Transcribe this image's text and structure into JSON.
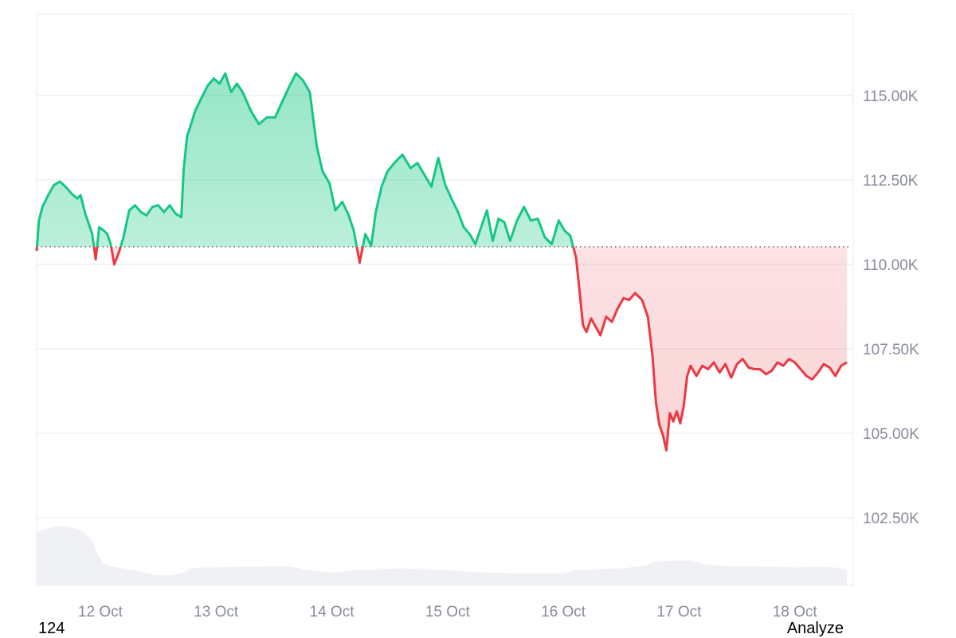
{
  "chart_data": {
    "type": "area",
    "x_labels": [
      "12 Oct",
      "13 Oct",
      "14 Oct",
      "15 Oct",
      "16 Oct",
      "17 Oct",
      "18 Oct"
    ],
    "y_ticks": [
      "115.00K",
      "112.50K",
      "110.00K",
      "107.50K",
      "105.00K",
      "102.50K"
    ],
    "y_tick_values": [
      115000,
      112500,
      110000,
      107500,
      105000,
      102500
    ],
    "ylim": [
      100500,
      117400
    ],
    "x_range": [
      11.45,
      18.47
    ],
    "baseline": 110520,
    "grid": true,
    "colors": {
      "up": "#16c784",
      "down": "#ea3943",
      "volume": "#eff1f4",
      "grid": "#eef0f3",
      "baseline": "#555555"
    },
    "series": [
      {
        "values": [
          [
            11.45,
            110400
          ],
          [
            11.47,
            111300
          ],
          [
            11.5,
            111700
          ],
          [
            11.55,
            112050
          ],
          [
            11.6,
            112350
          ],
          [
            11.65,
            112450
          ],
          [
            11.7,
            112300
          ],
          [
            11.75,
            112100
          ],
          [
            11.8,
            111950
          ],
          [
            11.83,
            112050
          ],
          [
            11.87,
            111500
          ],
          [
            11.9,
            111200
          ],
          [
            11.93,
            110900
          ],
          [
            11.96,
            110150
          ],
          [
            11.99,
            111100
          ],
          [
            12.03,
            111000
          ],
          [
            12.06,
            110900
          ],
          [
            12.09,
            110600
          ],
          [
            12.12,
            110000
          ],
          [
            12.16,
            110350
          ],
          [
            12.2,
            110800
          ],
          [
            12.25,
            111600
          ],
          [
            12.3,
            111750
          ],
          [
            12.35,
            111550
          ],
          [
            12.4,
            111450
          ],
          [
            12.45,
            111700
          ],
          [
            12.5,
            111750
          ],
          [
            12.55,
            111550
          ],
          [
            12.6,
            111750
          ],
          [
            12.65,
            111500
          ],
          [
            12.7,
            111400
          ],
          [
            12.72,
            112800
          ],
          [
            12.75,
            113800
          ],
          [
            12.78,
            114100
          ],
          [
            12.82,
            114550
          ],
          [
            12.87,
            114900
          ],
          [
            12.93,
            115300
          ],
          [
            12.98,
            115500
          ],
          [
            13.03,
            115350
          ],
          [
            13.08,
            115650
          ],
          [
            13.13,
            115100
          ],
          [
            13.18,
            115350
          ],
          [
            13.23,
            115100
          ],
          [
            13.3,
            114550
          ],
          [
            13.37,
            114150
          ],
          [
            13.44,
            114350
          ],
          [
            13.51,
            114350
          ],
          [
            13.57,
            114800
          ],
          [
            13.63,
            115250
          ],
          [
            13.69,
            115650
          ],
          [
            13.75,
            115450
          ],
          [
            13.81,
            115100
          ],
          [
            13.87,
            113500
          ],
          [
            13.92,
            112750
          ],
          [
            13.98,
            112400
          ],
          [
            14.03,
            111600
          ],
          [
            14.09,
            111850
          ],
          [
            14.14,
            111500
          ],
          [
            14.19,
            111000
          ],
          [
            14.24,
            110050
          ],
          [
            14.29,
            110900
          ],
          [
            14.34,
            110550
          ],
          [
            14.38,
            111550
          ],
          [
            14.43,
            112300
          ],
          [
            14.48,
            112750
          ],
          [
            14.54,
            113000
          ],
          [
            14.61,
            113250
          ],
          [
            14.68,
            112850
          ],
          [
            14.74,
            113000
          ],
          [
            14.8,
            112650
          ],
          [
            14.86,
            112300
          ],
          [
            14.92,
            113150
          ],
          [
            14.98,
            112350
          ],
          [
            15.04,
            111900
          ],
          [
            15.09,
            111550
          ],
          [
            15.14,
            111100
          ],
          [
            15.19,
            110900
          ],
          [
            15.24,
            110600
          ],
          [
            15.29,
            111100
          ],
          [
            15.34,
            111600
          ],
          [
            15.39,
            110700
          ],
          [
            15.44,
            111350
          ],
          [
            15.49,
            111250
          ],
          [
            15.54,
            110700
          ],
          [
            15.6,
            111300
          ],
          [
            15.66,
            111700
          ],
          [
            15.72,
            111300
          ],
          [
            15.78,
            111350
          ],
          [
            15.84,
            110800
          ],
          [
            15.9,
            110600
          ],
          [
            15.96,
            111300
          ],
          [
            16.01,
            111000
          ],
          [
            16.06,
            110850
          ],
          [
            16.11,
            110200
          ],
          [
            16.14,
            109200
          ],
          [
            16.17,
            108200
          ],
          [
            16.2,
            108000
          ],
          [
            16.24,
            108400
          ],
          [
            16.28,
            108150
          ],
          [
            16.32,
            107900
          ],
          [
            16.37,
            108450
          ],
          [
            16.42,
            108300
          ],
          [
            16.47,
            108700
          ],
          [
            16.52,
            109000
          ],
          [
            16.57,
            108950
          ],
          [
            16.62,
            109150
          ],
          [
            16.68,
            108950
          ],
          [
            16.73,
            108450
          ],
          [
            16.77,
            107300
          ],
          [
            16.8,
            105900
          ],
          [
            16.83,
            105250
          ],
          [
            16.86,
            104950
          ],
          [
            16.89,
            104500
          ],
          [
            16.92,
            105600
          ],
          [
            16.95,
            105350
          ],
          [
            16.98,
            105650
          ],
          [
            17.01,
            105300
          ],
          [
            17.04,
            105800
          ],
          [
            17.07,
            106700
          ],
          [
            17.1,
            107000
          ],
          [
            17.15,
            106700
          ],
          [
            17.2,
            107000
          ],
          [
            17.25,
            106900
          ],
          [
            17.3,
            107100
          ],
          [
            17.35,
            106800
          ],
          [
            17.4,
            107050
          ],
          [
            17.45,
            106650
          ],
          [
            17.5,
            107050
          ],
          [
            17.55,
            107200
          ],
          [
            17.6,
            106950
          ],
          [
            17.65,
            106900
          ],
          [
            17.7,
            106900
          ],
          [
            17.75,
            106750
          ],
          [
            17.8,
            106850
          ],
          [
            17.85,
            107100
          ],
          [
            17.9,
            107000
          ],
          [
            17.95,
            107200
          ],
          [
            18.0,
            107100
          ],
          [
            18.05,
            106900
          ],
          [
            18.1,
            106700
          ],
          [
            18.15,
            106600
          ],
          [
            18.2,
            106800
          ],
          [
            18.25,
            107050
          ],
          [
            18.3,
            106950
          ],
          [
            18.35,
            106700
          ],
          [
            18.4,
            107000
          ],
          [
            18.45,
            107100
          ]
        ]
      }
    ],
    "volume": [
      [
        11.45,
        0.62
      ],
      [
        11.55,
        0.67
      ],
      [
        11.65,
        0.7
      ],
      [
        11.75,
        0.68
      ],
      [
        11.85,
        0.63
      ],
      [
        11.92,
        0.55
      ],
      [
        11.97,
        0.38
      ],
      [
        12.02,
        0.26
      ],
      [
        12.1,
        0.22
      ],
      [
        12.2,
        0.2
      ],
      [
        12.3,
        0.18
      ],
      [
        12.4,
        0.14
      ],
      [
        12.5,
        0.12
      ],
      [
        12.6,
        0.12
      ],
      [
        12.7,
        0.14
      ],
      [
        12.78,
        0.2
      ],
      [
        12.9,
        0.21
      ],
      [
        13.0,
        0.21
      ],
      [
        13.2,
        0.22
      ],
      [
        13.4,
        0.22
      ],
      [
        13.6,
        0.23
      ],
      [
        13.8,
        0.18
      ],
      [
        14.0,
        0.15
      ],
      [
        14.2,
        0.18
      ],
      [
        14.4,
        0.19
      ],
      [
        14.6,
        0.2
      ],
      [
        14.8,
        0.19
      ],
      [
        15.0,
        0.18
      ],
      [
        15.2,
        0.16
      ],
      [
        15.4,
        0.15
      ],
      [
        15.6,
        0.14
      ],
      [
        15.8,
        0.14
      ],
      [
        16.0,
        0.14
      ],
      [
        16.1,
        0.18
      ],
      [
        16.3,
        0.19
      ],
      [
        16.5,
        0.2
      ],
      [
        16.7,
        0.23
      ],
      [
        16.8,
        0.28
      ],
      [
        16.95,
        0.29
      ],
      [
        17.1,
        0.29
      ],
      [
        17.25,
        0.24
      ],
      [
        17.4,
        0.23
      ],
      [
        17.55,
        0.23
      ],
      [
        17.7,
        0.22
      ],
      [
        17.85,
        0.22
      ],
      [
        18.0,
        0.21
      ],
      [
        18.2,
        0.22
      ],
      [
        18.35,
        0.21
      ],
      [
        18.45,
        0.18
      ]
    ]
  },
  "footer": {
    "left_text": "124",
    "right_text": "Analyze"
  }
}
